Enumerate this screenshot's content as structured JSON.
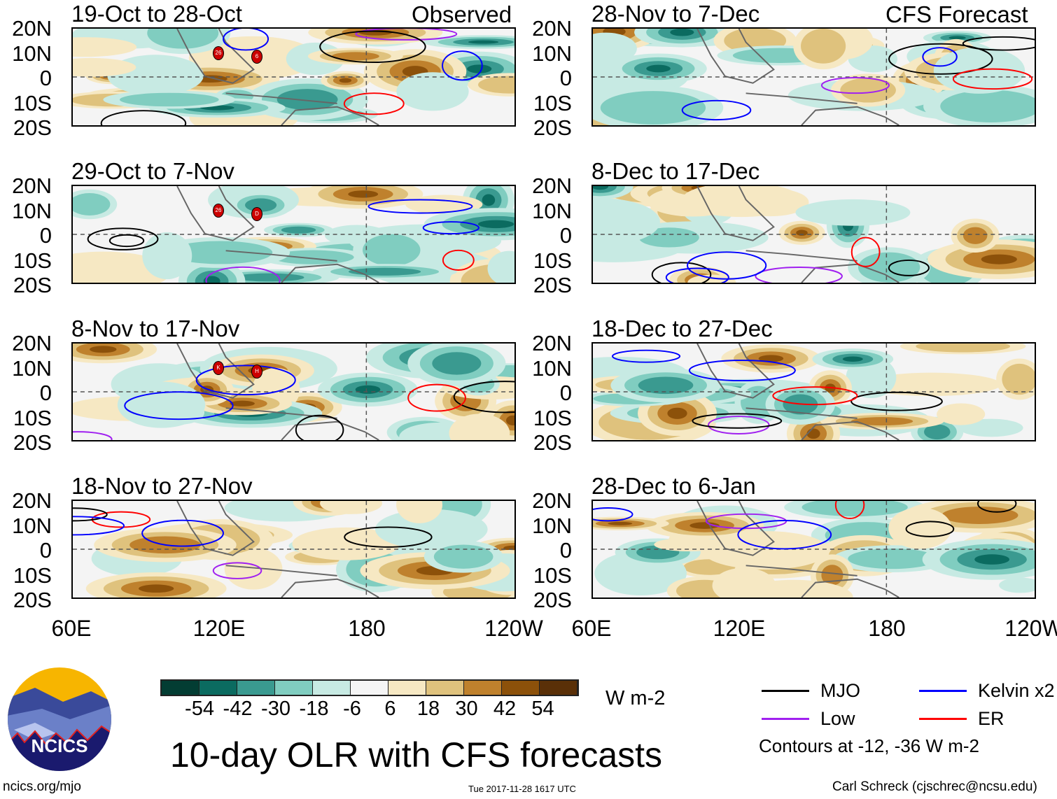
{
  "header": {
    "observed_label": "Observed",
    "forecast_label": "CFS Forecast"
  },
  "panels": [
    {
      "title": "19-Oct to 28-Oct",
      "column": "observed",
      "storms": [
        "26",
        "6"
      ]
    },
    {
      "title": "29-Oct to 7-Nov",
      "column": "observed",
      "storms": [
        "26",
        "D"
      ]
    },
    {
      "title": "8-Nov to 17-Nov",
      "column": "observed",
      "storms": [
        "K",
        "H"
      ]
    },
    {
      "title": "18-Nov to 27-Nov",
      "column": "observed",
      "storms": []
    },
    {
      "title": "28-Nov to 7-Dec",
      "column": "forecast",
      "storms": []
    },
    {
      "title": "8-Dec to 17-Dec",
      "column": "forecast",
      "storms": []
    },
    {
      "title": "18-Dec to 27-Dec",
      "column": "forecast",
      "storms": []
    },
    {
      "title": "28-Dec to 6-Jan",
      "column": "forecast",
      "storms": []
    }
  ],
  "lat_labels": [
    "20N",
    "10N",
    "0",
    "10S",
    "20S"
  ],
  "lon_labels": [
    "60E",
    "120E",
    "180",
    "120W"
  ],
  "colorbar": {
    "colors": [
      "#033d33",
      "#0b6b60",
      "#3a9a90",
      "#80cdc0",
      "#c7eae3",
      "#f5f5f5",
      "#f6e8c3",
      "#dfc27d",
      "#bf812d",
      "#8c510a",
      "#5a3008"
    ],
    "labels": [
      "-54",
      "-42",
      "-30",
      "-18",
      "-6",
      "6",
      "18",
      "30",
      "42",
      "54"
    ],
    "units": "W m-2"
  },
  "legend": {
    "items": [
      {
        "label": "MJO",
        "color": "#000000"
      },
      {
        "label": "Kelvin x2",
        "color": "#0000ff"
      },
      {
        "label": "Low",
        "color": "#a020f0"
      },
      {
        "label": "ER",
        "color": "#ff0000"
      }
    ],
    "note": "Contours at -12, -36 W m-2"
  },
  "title": "10-day OLR with CFS forecasts",
  "logo": {
    "text": "NCICS"
  },
  "footer": {
    "url": "ncics.org/mjo",
    "timestamp": "Tue 2017-11-28 1617 UTC",
    "credit": "Carl Schreck (cjschrec@ncsu.edu)"
  }
}
